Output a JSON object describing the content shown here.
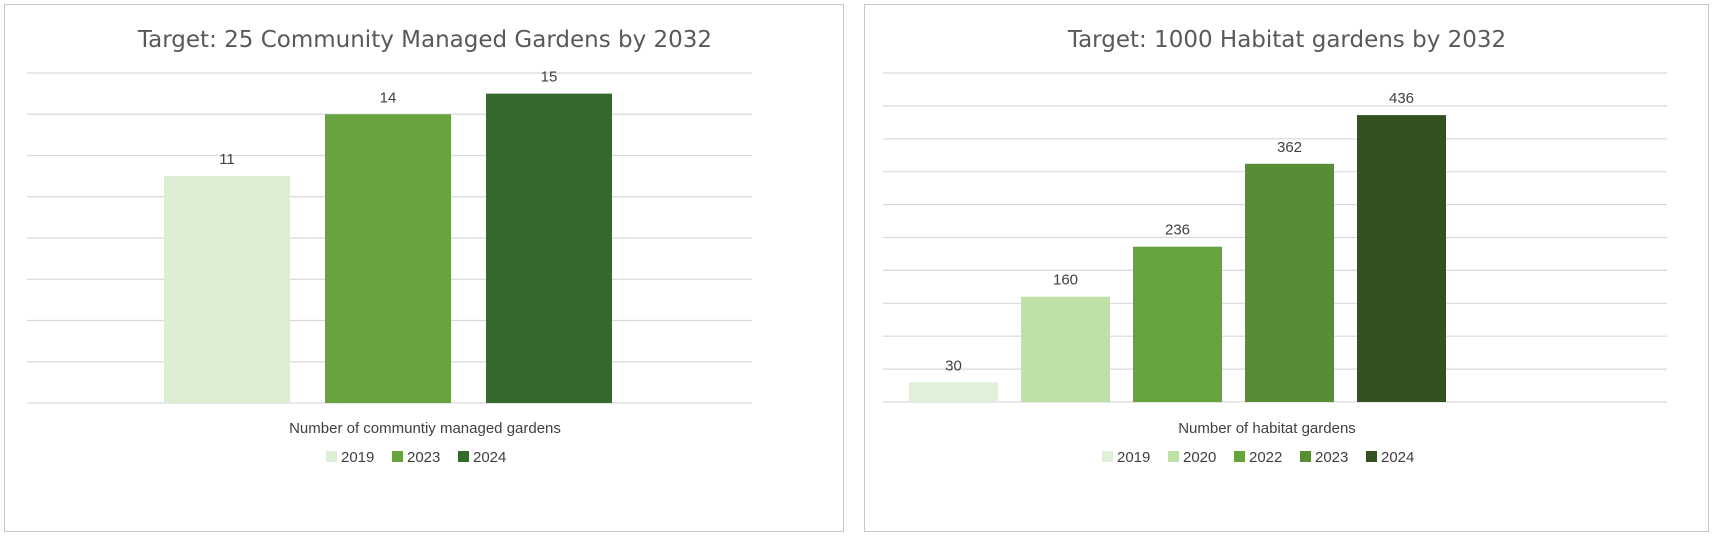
{
  "chart_data": [
    {
      "type": "bar",
      "title": "Target: 25 Community Managed Gardens by 2032",
      "xlabel": "Number of communtiy managed gardens",
      "categories": [
        "Number of communtiy managed gardens"
      ],
      "series": [
        {
          "name": "2019",
          "values": [
            11
          ],
          "color": "#dcefd4"
        },
        {
          "name": "2023",
          "values": [
            14
          ],
          "color": "#67a43f"
        },
        {
          "name": "2024",
          "values": [
            15
          ],
          "color": "#336a2c"
        }
      ],
      "ylim": [
        0,
        16
      ],
      "gridlines": 8,
      "grid": true,
      "legend": "bottom"
    },
    {
      "type": "bar",
      "title": "Target: 1000 Habitat gardens by 2032",
      "xlabel": "Number of habitat gardens",
      "categories": [
        "Number of habitat gardens"
      ],
      "series": [
        {
          "name": "2019",
          "values": [
            30
          ],
          "color": "#e1f0d9"
        },
        {
          "name": "2020",
          "values": [
            160
          ],
          "color": "#bfe1a5"
        },
        {
          "name": "2022",
          "values": [
            236
          ],
          "color": "#65a33d"
        },
        {
          "name": "2023",
          "values": [
            362
          ],
          "color": "#568d35"
        },
        {
          "name": "2024",
          "values": [
            436
          ],
          "color": "#33521f"
        }
      ],
      "ylim": [
        0,
        500
      ],
      "gridlines": 10,
      "grid": true,
      "legend": "bottom"
    }
  ]
}
